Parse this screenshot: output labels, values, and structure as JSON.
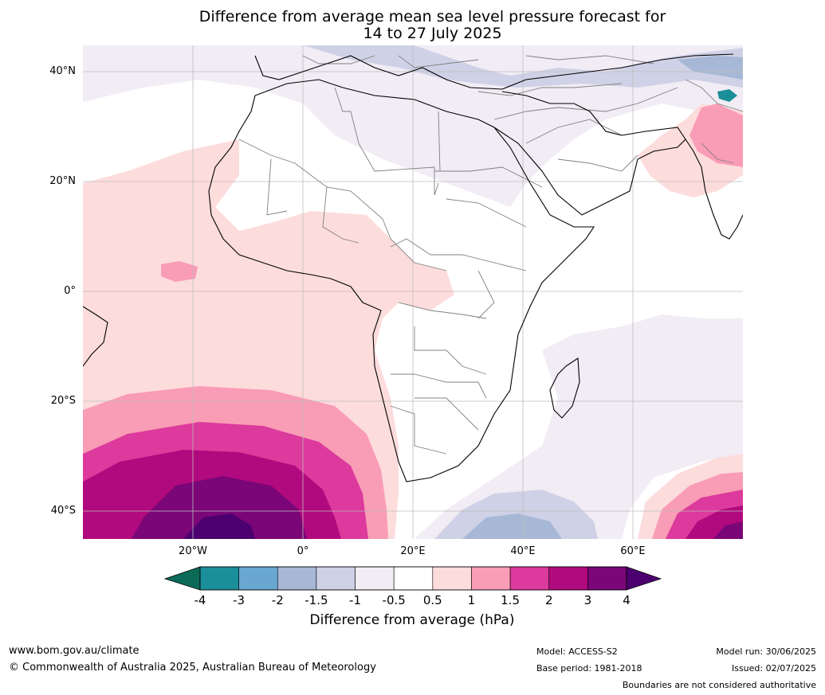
{
  "title_line1": "Difference from average mean sea level pressure forecast for",
  "title_line2": "14 to 27 July 2025",
  "lat_labels": [
    "40°N",
    "20°N",
    "0°",
    "20°S",
    "40°S"
  ],
  "lon_labels": [
    "20°W",
    "0°",
    "20°E",
    "40°E",
    "60°E"
  ],
  "colorbar": {
    "ticks": [
      "-4",
      "-3",
      "-2",
      "-1.5",
      "-1",
      "-0.5",
      "0.5",
      "1",
      "1.5",
      "2",
      "3",
      "4"
    ],
    "colors": [
      "#1b8f99",
      "#69a7d1",
      "#a7b8d6",
      "#cfd1e6",
      "#f2ecf5",
      "#ffffff",
      "#fddcdc",
      "#f99cb5",
      "#dc3a9c",
      "#b10a7e",
      "#7a0677"
    ],
    "under_color": "#0b6b58",
    "over_color": "#4c0070",
    "title": "Difference from average (hPa)"
  },
  "footer": {
    "website": "www.bom.gov.au/climate",
    "copyright": "© Commonwealth of Australia 2025, Australian Bureau of Meteorology",
    "model": "Model: ACCESS-S2",
    "base_period": "Base period: 1981-2018",
    "model_run": "Model run: 30/06/2025",
    "issued": "Issued: 02/07/2025",
    "disclaimer": "Boundaries are not considered authoritative"
  }
}
